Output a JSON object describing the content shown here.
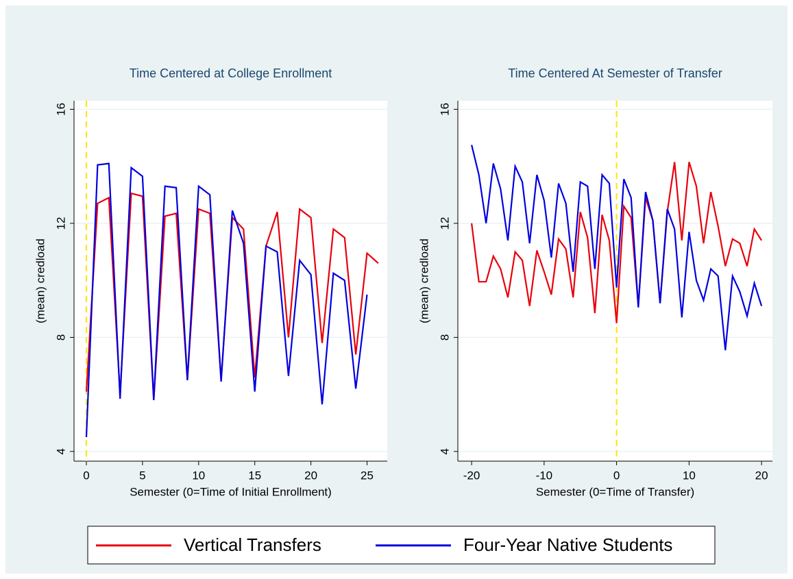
{
  "chart_data": [
    {
      "type": "line",
      "title": "Time Centered at College Enrollment",
      "xlabel": "Semester  (0=Time of Initial Enrollment)",
      "ylabel": "(mean) credload",
      "x": [
        0,
        1,
        2,
        3,
        4,
        5,
        6,
        7,
        8,
        9,
        10,
        11,
        12,
        13,
        14,
        15,
        16,
        17,
        18,
        19,
        20,
        21,
        22,
        23,
        24,
        25,
        26
      ],
      "series": [
        {
          "name": "Vertical Transfers",
          "color": "#e8000b",
          "values": [
            6.1,
            12.7,
            12.9,
            6.0,
            13.05,
            12.95,
            5.8,
            12.25,
            12.35,
            6.5,
            12.5,
            12.35,
            6.5,
            12.2,
            11.8,
            6.6,
            11.2,
            12.4,
            8.0,
            12.5,
            12.2,
            7.8,
            11.8,
            11.5,
            7.4,
            10.95,
            10.6
          ]
        },
        {
          "name": "Four-Year Native Students",
          "color": "#0000e0",
          "values": [
            4.5,
            14.05,
            14.1,
            5.85,
            13.95,
            13.65,
            5.8,
            13.3,
            13.25,
            6.5,
            13.3,
            13.0,
            6.45,
            12.45,
            11.3,
            6.1,
            11.2,
            11.0,
            6.65,
            10.7,
            10.2,
            5.65,
            10.25,
            10.0,
            6.2,
            9.5,
            null
          ]
        }
      ],
      "xlim": [
        -1.1,
        26.8
      ],
      "xticks": [
        0,
        5,
        10,
        15,
        20,
        25
      ],
      "ylim": [
        3.66,
        16.3
      ],
      "yticks": [
        4,
        8,
        12,
        16
      ],
      "vline": 0,
      "grid": true
    },
    {
      "type": "line",
      "title": "Time Centered At Semester of Transfer",
      "xlabel": "Semester  (0=Time of Transfer)",
      "ylabel": "(mean) credload",
      "x": [
        -20,
        -19,
        -18,
        -17,
        -16,
        -15,
        -14,
        -13,
        -12,
        -11,
        -10,
        -9,
        -8,
        -7,
        -6,
        -5,
        -4,
        -3,
        -2,
        -1,
        0,
        1,
        2,
        3,
        4,
        5,
        6,
        7,
        8,
        9,
        10,
        11,
        12,
        13,
        14,
        15,
        16,
        17,
        18,
        19,
        20
      ],
      "series": [
        {
          "color": "#e8000b",
          "values": [
            12.0,
            9.95,
            9.95,
            10.85,
            10.4,
            9.4,
            11.0,
            10.7,
            9.1,
            11.05,
            10.3,
            9.5,
            11.45,
            11.1,
            9.4,
            12.4,
            11.5,
            8.85,
            12.3,
            11.4,
            8.5,
            12.6,
            12.2,
            9.1,
            12.9,
            12.1,
            9.2,
            12.4,
            14.15,
            11.4,
            14.15,
            13.3,
            11.3,
            13.1,
            11.9,
            10.5,
            11.45,
            11.3,
            10.5,
            11.8,
            11.4
          ]
        },
        {
          "color": "#0000e0",
          "values": [
            14.75,
            13.7,
            12.0,
            14.1,
            13.2,
            11.4,
            14.0,
            13.45,
            11.3,
            13.7,
            12.8,
            10.8,
            13.4,
            12.7,
            10.3,
            13.45,
            13.3,
            10.4,
            13.7,
            13.4,
            9.75,
            13.55,
            12.9,
            9.05,
            13.1,
            12.1,
            9.2,
            12.5,
            11.8,
            8.7,
            11.7,
            10.0,
            9.3,
            10.4,
            10.15,
            7.55,
            10.15,
            9.6,
            8.75,
            9.9,
            9.1
          ]
        }
      ],
      "xlim": [
        -21.9,
        21.5
      ],
      "xticks": [
        -20,
        -10,
        0,
        10,
        20
      ],
      "ylim": [
        3.66,
        16.3
      ],
      "yticks": [
        4,
        8,
        12,
        16
      ],
      "vline": 0,
      "grid": true
    }
  ]
}
